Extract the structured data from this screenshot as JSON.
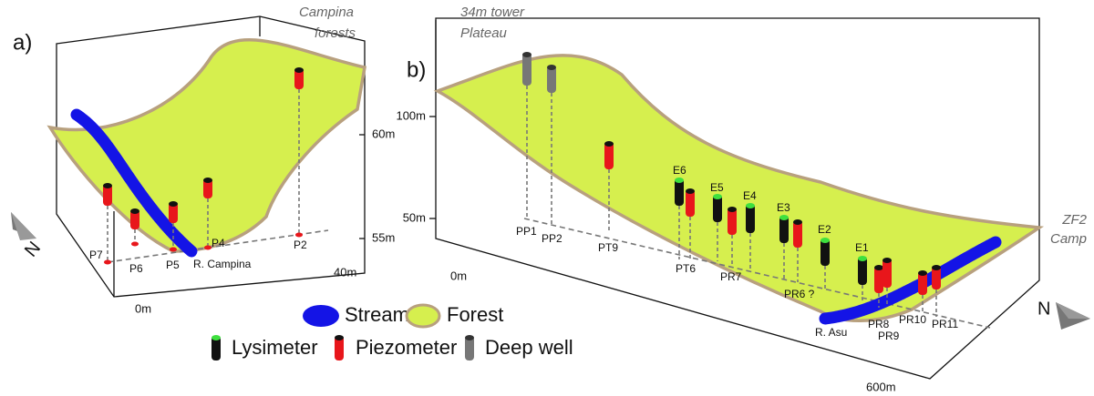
{
  "panel_a": {
    "label": "a)",
    "site": [
      "Campina",
      "forests"
    ],
    "axis_labels": [
      "60m",
      "55m",
      "40m",
      "0m"
    ],
    "wells": [
      "P7",
      "P6",
      "P5",
      "P4",
      "P2"
    ],
    "stream": "R. Campina",
    "compass": "N"
  },
  "panel_b": {
    "label": "b)",
    "site_left": [
      "34m tower",
      "Plateau"
    ],
    "site_right": [
      "ZF2",
      "Camp"
    ],
    "axis_labels": [
      "100m",
      "50m",
      "0m",
      "600m"
    ],
    "wells": [
      "PP1",
      "PP2",
      "PT9",
      "E6",
      "E5",
      "E4",
      "E3",
      "E2",
      "E1",
      "PT6",
      "PR7",
      "PR6 ?",
      "PR8",
      "PR9",
      "PR10",
      "PR11"
    ],
    "stream": "R. Asu",
    "compass": "N"
  },
  "legend": [
    "Stream",
    "Forest",
    "Lysimeter",
    "Piezometer",
    "Deep well"
  ]
}
